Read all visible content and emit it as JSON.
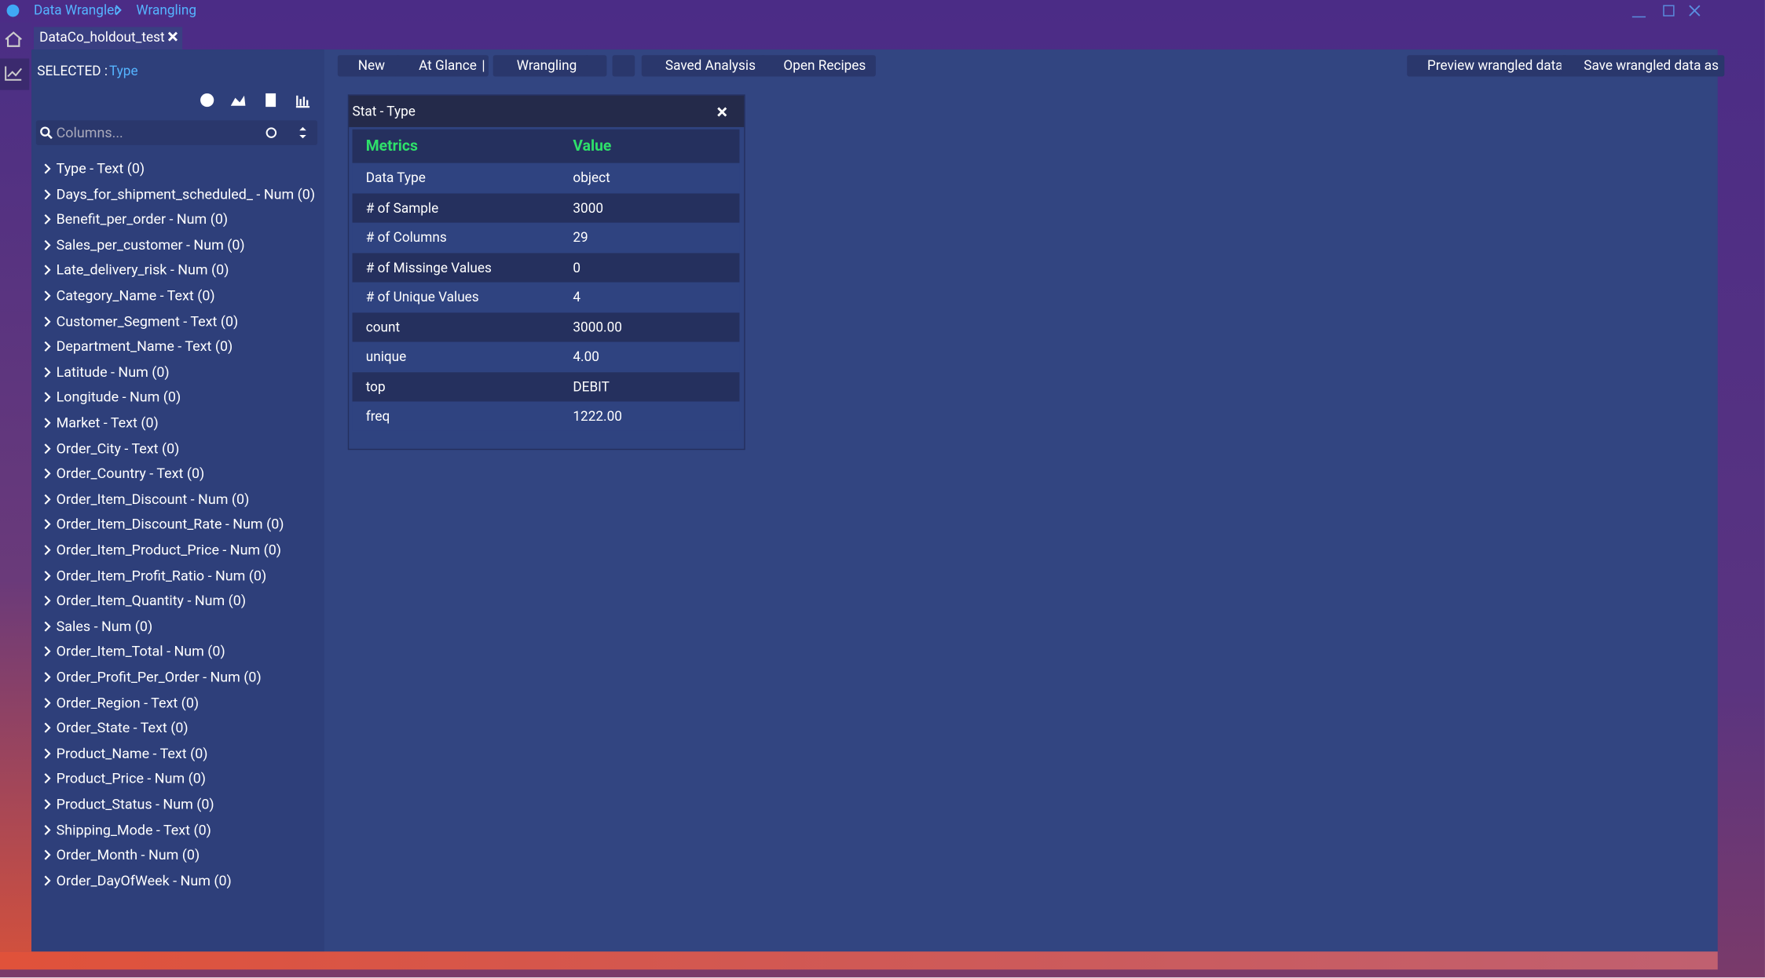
{
  "titlebar": {
    "app": "Data Wrangler",
    "crumb": "Wrangling"
  },
  "tab": {
    "label": "DataCo_holdout_test"
  },
  "sidebar": {
    "selected_label": "SELECTED :",
    "selected_value": "Type",
    "search_placeholder": "Columns...",
    "columns": [
      "Type - Text (0)",
      "Days_for_shipment_scheduled_ - Num (0)",
      "Benefit_per_order - Num (0)",
      "Sales_per_customer - Num (0)",
      "Late_delivery_risk - Num (0)",
      "Category_Name - Text (0)",
      "Customer_Segment - Text (0)",
      "Department_Name - Text (0)",
      "Latitude - Num (0)",
      "Longitude - Num (0)",
      "Market - Text (0)",
      "Order_City - Text (0)",
      "Order_Country - Text (0)",
      "Order_Item_Discount - Num (0)",
      "Order_Item_Discount_Rate - Num (0)",
      "Order_Item_Product_Price - Num (0)",
      "Order_Item_Profit_Ratio - Num (0)",
      "Order_Item_Quantity - Num (0)",
      "Sales - Num (0)",
      "Order_Item_Total - Num (0)",
      "Order_Profit_Per_Order - Num (0)",
      "Order_Region - Text (0)",
      "Order_State - Text (0)",
      "Product_Name - Text (0)",
      "Product_Price - Num (0)",
      "Product_Status - Num (0)",
      "Shipping_Mode - Text (0)",
      "Order_Month - Num (0)",
      "Order_DayOfWeek - Num (0)"
    ]
  },
  "toolbar": {
    "new": "New",
    "at_glance": "At Glance",
    "separator": "|",
    "wrangling": "Wrangling",
    "saved_analysis": "Saved Analysis",
    "open_recipes": "Open Recipes",
    "preview": "Preview wrangled data",
    "save_as": "Save wrangled data as"
  },
  "panel": {
    "title": "Stat - Type",
    "table": {
      "header": [
        "Metrics",
        "Value"
      ],
      "rows": [
        [
          "Data Type",
          "object"
        ],
        [
          "# of Sample",
          "3000"
        ],
        [
          "# of Columns",
          "29"
        ],
        [
          "# of Missinge Values",
          "0"
        ],
        [
          "# of Unique Values",
          "4"
        ],
        [
          "count",
          "3000.00"
        ],
        [
          "unique",
          "4.00"
        ],
        [
          "top",
          "DEBIT"
        ],
        [
          "freq",
          "1222.00"
        ]
      ]
    }
  }
}
